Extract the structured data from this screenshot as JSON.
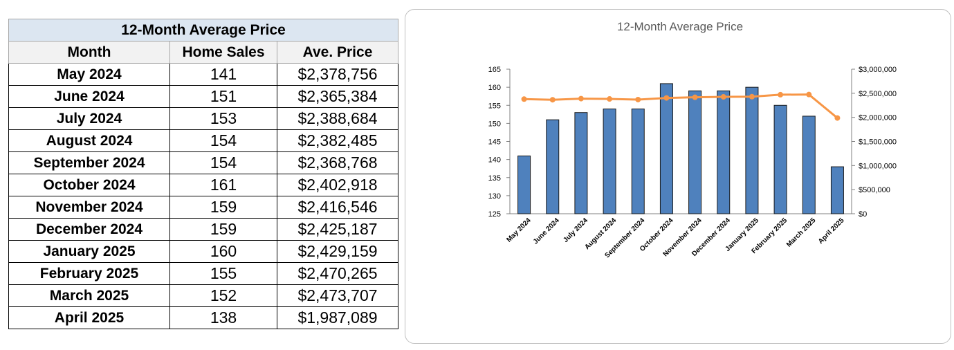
{
  "table": {
    "title": "12-Month Average Price",
    "headers": [
      "Month",
      "Home Sales",
      "Ave. Price"
    ],
    "rows": [
      [
        "May 2024",
        "141",
        "$2,378,756"
      ],
      [
        "June 2024",
        "151",
        "$2,365,384"
      ],
      [
        "July 2024",
        "153",
        "$2,388,684"
      ],
      [
        "August 2024",
        "154",
        "$2,382,485"
      ],
      [
        "September 2024",
        "154",
        "$2,368,768"
      ],
      [
        "October 2024",
        "161",
        "$2,402,918"
      ],
      [
        "November 2024",
        "159",
        "$2,416,546"
      ],
      [
        "December 2024",
        "159",
        "$2,425,187"
      ],
      [
        "January 2025",
        "160",
        "$2,429,159"
      ],
      [
        "February 2025",
        "155",
        "$2,470,265"
      ],
      [
        "March 2025",
        "152",
        "$2,473,707"
      ],
      [
        "April 2025",
        "138",
        "$1,987,089"
      ]
    ]
  },
  "chart_data": {
    "type": "bar",
    "title": "12-Month Average Price",
    "categories": [
      "May 2024",
      "June 2024",
      "July 2024",
      "August 2024",
      "September 2024",
      "October 2024",
      "November 2024",
      "December 2024",
      "January 2025",
      "February 2025",
      "March 2025",
      "April 2025"
    ],
    "series": [
      {
        "type": "bar",
        "axis": "left",
        "values": [
          141,
          151,
          153,
          154,
          154,
          161,
          159,
          159,
          160,
          155,
          152,
          138
        ],
        "color": "#4f81bd"
      },
      {
        "type": "line",
        "axis": "right",
        "values": [
          2378756,
          2365384,
          2388684,
          2382485,
          2368768,
          2402918,
          2416546,
          2425187,
          2429159,
          2470265,
          2473707,
          1987089
        ],
        "color": "#f79646"
      }
    ],
    "ylim_left": [
      125,
      165
    ],
    "yticks_left": [
      "125",
      "130",
      "135",
      "140",
      "145",
      "150",
      "155",
      "160",
      "165"
    ],
    "ylim_right": [
      0,
      3000000
    ],
    "yticks_right": [
      "$0",
      "$500,000",
      "$1,000,000",
      "$1,500,000",
      "$2,000,000",
      "$2,500,000",
      "$3,000,000"
    ],
    "grid": false,
    "legend": "none"
  }
}
